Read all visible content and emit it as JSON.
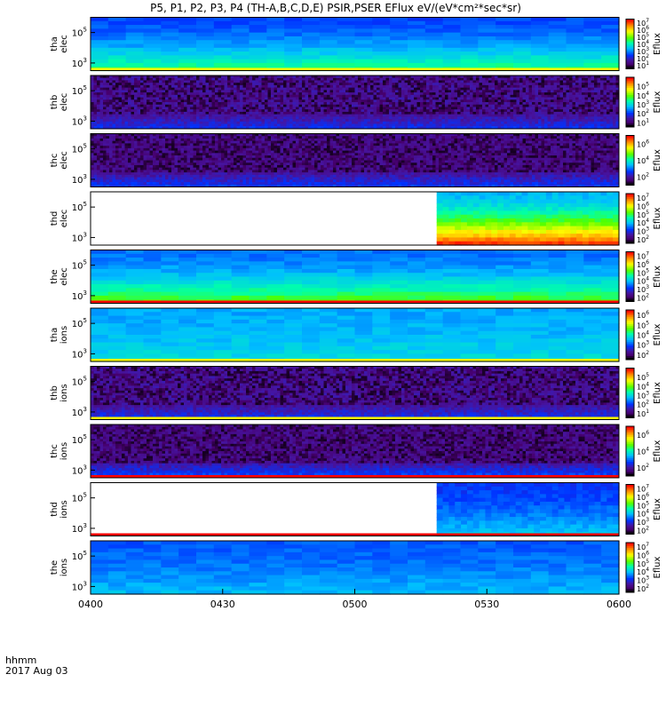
{
  "title": "P5, P1, P2, P3, P4 (TH-A,B,C,D,E) PSIR,PSER EFlux eV/(eV*cm²*sec*sr)",
  "footer": {
    "label1": "hhmm",
    "label2": "2017 Aug 03"
  },
  "colors": {
    "bar_red": "#ff0000",
    "bar_yellow": "#ffff00",
    "bar_black": "#000000"
  },
  "chart_data": {
    "type": "heatmap",
    "x_ticks": [
      "0400",
      "0430",
      "0500",
      "0530",
      "0600"
    ],
    "x_range": [
      "0400",
      "0600"
    ],
    "panels": [
      {
        "name": "tha-elec",
        "label1": "tha",
        "label2": "elec",
        "yticks": [
          {
            "base": "10",
            "exp": "5",
            "v": 5
          },
          {
            "base": "10",
            "exp": "3",
            "v": 3
          }
        ],
        "yrange": [
          2.5,
          6
        ],
        "pattern": "smooth",
        "bg": 0.3,
        "base_level": 0.55,
        "high_level": 0.28,
        "data_start": 0,
        "bottom_line": "yellow",
        "cbar_label": "Eflux",
        "cbar_ticks": [
          {
            "base": "10",
            "exp": "7",
            "v": 7
          },
          {
            "base": "10",
            "exp": "6",
            "v": 6
          },
          {
            "base": "10",
            "exp": "5",
            "v": 5
          },
          {
            "base": "10",
            "exp": "4",
            "v": 4
          },
          {
            "base": "10",
            "exp": "3",
            "v": 3
          },
          {
            "base": "10",
            "exp": "2",
            "v": 2
          },
          {
            "base": "10",
            "exp": "1",
            "v": 1
          }
        ],
        "cbar_range": [
          0.5,
          7.5
        ]
      },
      {
        "name": "thb-elec",
        "label1": "thb",
        "label2": "elec",
        "yticks": [
          {
            "base": "10",
            "exp": "5",
            "v": 5
          },
          {
            "base": "10",
            "exp": "3",
            "v": 3
          }
        ],
        "yrange": [
          2.5,
          6
        ],
        "pattern": "noisy",
        "bg": 0.12,
        "base_level": 0.28,
        "data_start": 0,
        "cbar_label": "Eflux",
        "cbar_ticks": [
          {
            "base": "10",
            "exp": "5",
            "v": 5
          },
          {
            "base": "10",
            "exp": "4",
            "v": 4
          },
          {
            "base": "10",
            "exp": "3",
            "v": 3
          },
          {
            "base": "10",
            "exp": "2",
            "v": 2
          },
          {
            "base": "10",
            "exp": "1",
            "v": 1
          }
        ],
        "cbar_range": [
          0.5,
          6
        ]
      },
      {
        "name": "thc-elec",
        "label1": "thc",
        "label2": "elec",
        "yticks": [
          {
            "base": "10",
            "exp": "5",
            "v": 5
          },
          {
            "base": "10",
            "exp": "3",
            "v": 3
          }
        ],
        "yrange": [
          2.5,
          6
        ],
        "pattern": "noisy",
        "bg": 0.1,
        "base_level": 0.3,
        "data_start": 0,
        "cbar_label": "Eflux",
        "cbar_ticks": [
          {
            "base": "10",
            "exp": "6",
            "v": 6
          },
          {
            "base": "10",
            "exp": "4",
            "v": 4
          },
          {
            "base": "10",
            "exp": "2",
            "v": 2
          }
        ],
        "cbar_range": [
          1,
          7
        ]
      },
      {
        "name": "thd-elec",
        "label1": "thd",
        "label2": "elec",
        "yticks": [
          {
            "base": "10",
            "exp": "5",
            "v": 5
          },
          {
            "base": "10",
            "exp": "3",
            "v": 3
          }
        ],
        "yrange": [
          2.5,
          6
        ],
        "pattern": "smooth",
        "bg": 0.42,
        "base_level": 0.95,
        "high_level": 0.4,
        "data_start": 0.655,
        "cbar_label": "Eflux",
        "cbar_ticks": [
          {
            "base": "10",
            "exp": "7",
            "v": 7
          },
          {
            "base": "10",
            "exp": "6",
            "v": 6
          },
          {
            "base": "10",
            "exp": "5",
            "v": 5
          },
          {
            "base": "10",
            "exp": "4",
            "v": 4
          },
          {
            "base": "10",
            "exp": "3",
            "v": 3
          },
          {
            "base": "10",
            "exp": "2",
            "v": 2
          }
        ],
        "cbar_range": [
          1.5,
          7.5
        ]
      },
      {
        "name": "the-elec",
        "label1": "the",
        "label2": "elec",
        "yticks": [
          {
            "base": "10",
            "exp": "5",
            "v": 5
          },
          {
            "base": "10",
            "exp": "3",
            "v": 3
          }
        ],
        "yrange": [
          2.5,
          6
        ],
        "pattern": "smooth",
        "bg": 0.36,
        "base_level": 0.62,
        "high_level": 0.32,
        "data_start": 0,
        "bottom_line": "red",
        "cbar_label": "Eflux",
        "cbar_ticks": [
          {
            "base": "10",
            "exp": "7",
            "v": 7
          },
          {
            "base": "10",
            "exp": "6",
            "v": 6
          },
          {
            "base": "10",
            "exp": "5",
            "v": 5
          },
          {
            "base": "10",
            "exp": "4",
            "v": 4
          },
          {
            "base": "10",
            "exp": "3",
            "v": 3
          },
          {
            "base": "10",
            "exp": "2",
            "v": 2
          }
        ],
        "cbar_range": [
          1.5,
          7.5
        ]
      },
      {
        "name": "tha-ions",
        "label1": "tha",
        "label2": "ions",
        "yticks": [
          {
            "base": "10",
            "exp": "5",
            "v": 5
          },
          {
            "base": "10",
            "exp": "3",
            "v": 3
          }
        ],
        "yrange": [
          2.5,
          6
        ],
        "pattern": "smooth",
        "bg": 0.4,
        "base_level": 0.45,
        "high_level": 0.38,
        "data_start": 0,
        "bottom_line": "yellow",
        "cbar_label": "Eflux",
        "cbar_ticks": [
          {
            "base": "10",
            "exp": "6",
            "v": 6
          },
          {
            "base": "10",
            "exp": "5",
            "v": 5
          },
          {
            "base": "10",
            "exp": "4",
            "v": 4
          },
          {
            "base": "10",
            "exp": "3",
            "v": 3
          },
          {
            "base": "10",
            "exp": "2",
            "v": 2
          }
        ],
        "cbar_range": [
          1.5,
          6.5
        ]
      },
      {
        "name": "thb-ions",
        "label1": "thb",
        "label2": "ions",
        "yticks": [
          {
            "base": "10",
            "exp": "5",
            "v": 5
          },
          {
            "base": "10",
            "exp": "3",
            "v": 3
          }
        ],
        "yrange": [
          2.5,
          6
        ],
        "pattern": "noisy",
        "bg": 0.12,
        "base_level": 0.3,
        "data_start": 0,
        "bottom_line": "yellow",
        "cbar_label": "Eflux",
        "cbar_ticks": [
          {
            "base": "10",
            "exp": "5",
            "v": 5
          },
          {
            "base": "10",
            "exp": "4",
            "v": 4
          },
          {
            "base": "10",
            "exp": "3",
            "v": 3
          },
          {
            "base": "10",
            "exp": "2",
            "v": 2
          },
          {
            "base": "10",
            "exp": "1",
            "v": 1
          }
        ],
        "cbar_range": [
          0.5,
          6
        ]
      },
      {
        "name": "thc-ions",
        "label1": "thc",
        "label2": "ions",
        "yticks": [
          {
            "base": "10",
            "exp": "5",
            "v": 5
          },
          {
            "base": "10",
            "exp": "3",
            "v": 3
          }
        ],
        "yrange": [
          2.5,
          6
        ],
        "pattern": "noisy",
        "bg": 0.1,
        "base_level": 0.35,
        "data_start": 0,
        "bottom_line": "red",
        "cbar_label": "Eflux",
        "cbar_ticks": [
          {
            "base": "10",
            "exp": "6",
            "v": 6
          },
          {
            "base": "10",
            "exp": "4",
            "v": 4
          },
          {
            "base": "10",
            "exp": "2",
            "v": 2
          }
        ],
        "cbar_range": [
          1,
          7
        ]
      },
      {
        "name": "thd-ions",
        "label1": "thd",
        "label2": "ions",
        "yticks": [
          {
            "base": "10",
            "exp": "5",
            "v": 5
          },
          {
            "base": "10",
            "exp": "3",
            "v": 3
          }
        ],
        "yrange": [
          2.5,
          6
        ],
        "pattern": "smooth",
        "bg": 0.28,
        "base_level": 0.42,
        "high_level": 0.26,
        "data_start": 0.655,
        "bottom_line": "red",
        "cbar_label": "Eflux",
        "cbar_ticks": [
          {
            "base": "10",
            "exp": "7",
            "v": 7
          },
          {
            "base": "10",
            "exp": "6",
            "v": 6
          },
          {
            "base": "10",
            "exp": "5",
            "v": 5
          },
          {
            "base": "10",
            "exp": "4",
            "v": 4
          },
          {
            "base": "10",
            "exp": "3",
            "v": 3
          },
          {
            "base": "10",
            "exp": "2",
            "v": 2
          }
        ],
        "cbar_range": [
          1.5,
          7.5
        ]
      },
      {
        "name": "the-ions",
        "label1": "the",
        "label2": "ions",
        "yticks": [
          {
            "base": "10",
            "exp": "5",
            "v": 5
          },
          {
            "base": "10",
            "exp": "3",
            "v": 3
          }
        ],
        "yrange": [
          2.5,
          6
        ],
        "pattern": "smooth",
        "bg": 0.32,
        "base_level": 0.4,
        "high_level": 0.3,
        "data_start": 0,
        "cbar_label": "Eflux",
        "cbar_ticks": [
          {
            "base": "10",
            "exp": "7",
            "v": 7
          },
          {
            "base": "10",
            "exp": "6",
            "v": 6
          },
          {
            "base": "10",
            "exp": "5",
            "v": 5
          },
          {
            "base": "10",
            "exp": "4",
            "v": 4
          },
          {
            "base": "10",
            "exp": "3",
            "v": 3
          },
          {
            "base": "10",
            "exp": "2",
            "v": 2
          }
        ],
        "cbar_range": [
          1.5,
          7.5
        ]
      }
    ]
  }
}
